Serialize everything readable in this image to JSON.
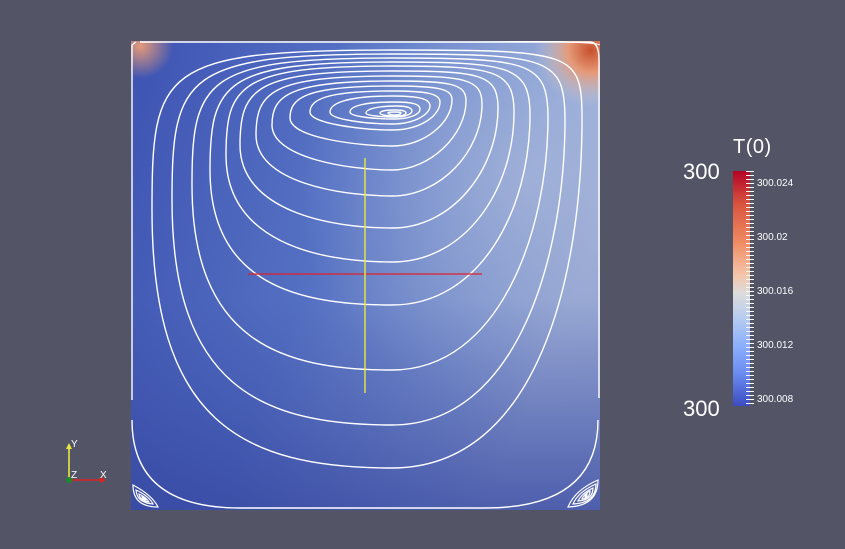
{
  "scalar_bar": {
    "title": "T(0)",
    "range_max_label": "300",
    "range_min_label": "300",
    "tick_labels": [
      "300.024",
      "300.02",
      "300.016",
      "300.012",
      "300.008"
    ]
  },
  "orientation_axes": {
    "y_label": "Y",
    "z_label": "Z",
    "x_label": "X"
  },
  "colors": {
    "background": "#535567",
    "streamline": "#ffffff",
    "x_axis": "#dd2222",
    "y_axis": "#e8e840",
    "z_axis": "#1a8a2a",
    "colormap_low": "#3b4cc0",
    "colormap_mid": "#dddcdc",
    "colormap_high": "#b40426"
  }
}
